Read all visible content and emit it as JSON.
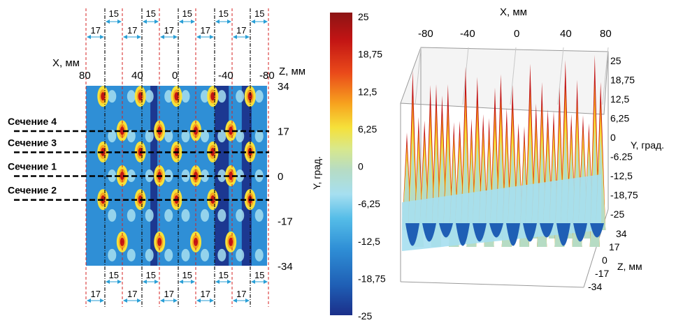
{
  "colors": {
    "scale": [
      "#1b2f8a",
      "#1f5fb5",
      "#2f8fd6",
      "#55bde8",
      "#a6dff0",
      "#b6dcc4",
      "#d8e88c",
      "#f6e13a",
      "#f7a21e",
      "#ea4a1a",
      "#c21414",
      "#8c1414"
    ],
    "guide_red": "#d62020",
    "guide_black": "#111111",
    "dim_blue": "#2a9fd6"
  },
  "heatmap": {
    "x_label": "X, мм",
    "z_label": "Z, мм",
    "x_ticks": [
      "80",
      "40",
      "0",
      "-40",
      "-80"
    ],
    "z_ticks": [
      "34",
      "17",
      "0",
      "-17",
      "-34"
    ],
    "sections": [
      {
        "label": "Сечение 4",
        "z": 17
      },
      {
        "label": "Сечение 3",
        "z": 9
      },
      {
        "label": "Сечение 1",
        "z": 0
      },
      {
        "label": "Сечение 2",
        "z": -9
      }
    ],
    "spacing_top_outer": [
      "15",
      "15",
      "15",
      "15",
      "15"
    ],
    "spacing_top_inner": [
      "17",
      "17",
      "17",
      "17",
      "17"
    ],
    "spacing_bottom_outer": [
      "15",
      "15",
      "15",
      "15",
      "15"
    ],
    "spacing_bottom_inner": [
      "17",
      "17",
      "17",
      "17",
      "17"
    ]
  },
  "colorbar": {
    "axis_label": "Y, град.",
    "ticks": [
      "25",
      "18,75",
      "12,5",
      "6,25",
      "0",
      "-6,25",
      "-12,5",
      "-18,75",
      "-25"
    ]
  },
  "surface": {
    "x_label": "X, мм",
    "x_ticks": [
      "-80",
      "-40",
      "0",
      "40",
      "80"
    ],
    "y_label": "Y, град.",
    "y_ticks": [
      "25",
      "18,75",
      "12,5",
      "6,25",
      "0",
      "-6.25",
      "-12,5",
      "-18,75",
      "-25"
    ],
    "z_label": "Z, мм",
    "z_ticks": [
      "34",
      "17",
      "0",
      "-17",
      "-34"
    ]
  },
  "chart_data": [
    {
      "type": "heatmap",
      "xlabel": "X, мм",
      "ylabel": "Z, мм",
      "xlim": [
        80,
        -80
      ],
      "ylim": [
        -34,
        34
      ],
      "value_range": [
        -25,
        25
      ],
      "peak_columns_x": [
        65,
        48,
        32,
        15,
        0,
        -17,
        -32,
        -48,
        -65
      ],
      "section_lines_z": [
        17,
        9,
        0,
        -9
      ]
    },
    {
      "type": "surface",
      "xlabel": "X, мм",
      "ylabel": "Y, град.",
      "zlabel": "Z, мм",
      "xlim": [
        -80,
        80
      ],
      "ylim": [
        -25,
        25
      ],
      "zlim": [
        -34,
        34
      ]
    }
  ]
}
